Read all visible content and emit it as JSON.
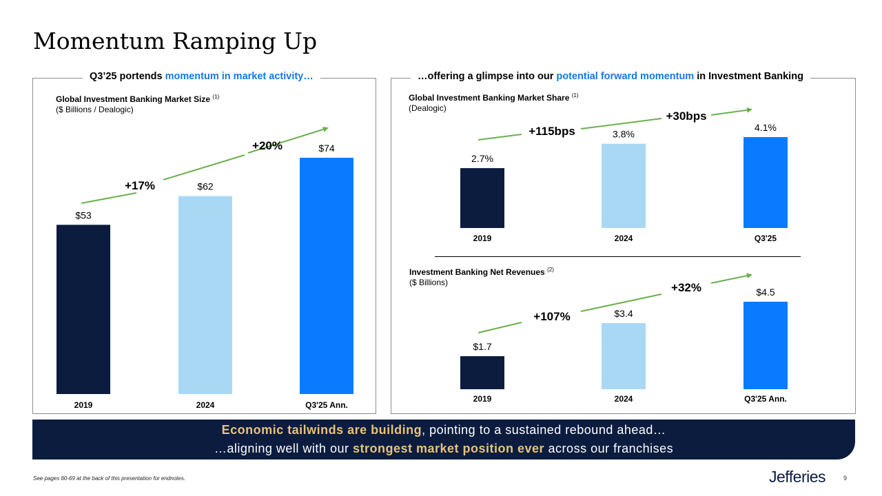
{
  "page": {
    "title": "Momentum Ramping Up",
    "page_number": "9",
    "footnote": "See pages 60-69 at the back of this presentation for endnotes.",
    "logo": "Jefferies"
  },
  "left_panel": {
    "header_pre": "Q3’25 portends ",
    "header_accent": "momentum in market activity…",
    "header_post": ""
  },
  "right_panel": {
    "header_pre": "…offering a glimpse into our ",
    "header_accent": "potential forward momentum",
    "header_post": " in Investment Banking"
  },
  "banner": {
    "line1_bold": "Economic tailwinds are building",
    "line1_rest": ", pointing to a sustained rebound ahead…",
    "line2_pre": "…aligning well with our ",
    "line2_bold": "strongest market position ever",
    "line2_rest": " across our franchises"
  },
  "colors": {
    "navy": "#0b1c3f",
    "light_blue": "#a9d8f5",
    "bright_blue": "#0a7bff",
    "arrow_green": "#6ab04c"
  },
  "chart_data": [
    {
      "id": "market_size",
      "type": "bar",
      "title": "Global Investment Banking Market Size",
      "title_sup": "(1)",
      "subtitle": "($ Billions / Dealogic)",
      "categories": [
        "2019",
        "2024",
        "Q3'25 Ann."
      ],
      "values": [
        53,
        62,
        74
      ],
      "value_labels": [
        "$53",
        "$62",
        "$74"
      ],
      "ylim": [
        0,
        74
      ],
      "growth_labels": [
        "+17%",
        "+20%"
      ]
    },
    {
      "id": "market_share",
      "type": "bar",
      "title": "Global Investment Banking Market Share",
      "title_sup": "(1)",
      "subtitle": "(Dealogic)",
      "categories": [
        "2019",
        "2024",
        "Q3'25"
      ],
      "values": [
        2.7,
        3.8,
        4.1
      ],
      "value_labels": [
        "2.7%",
        "3.8%",
        "4.1%"
      ],
      "ylim": [
        0,
        4.1
      ],
      "growth_labels": [
        "+115bps",
        "+30bps"
      ]
    },
    {
      "id": "net_revenues",
      "type": "bar",
      "title": "Investment Banking Net Revenues",
      "title_sup": "(2)",
      "subtitle": "($ Billions)",
      "categories": [
        "2019",
        "2024",
        "Q3'25 Ann."
      ],
      "values": [
        1.7,
        3.4,
        4.5
      ],
      "value_labels": [
        "$1.7",
        "$3.4",
        "$4.5"
      ],
      "ylim": [
        0,
        4.5
      ],
      "growth_labels": [
        "+107%",
        "+32%"
      ]
    }
  ]
}
